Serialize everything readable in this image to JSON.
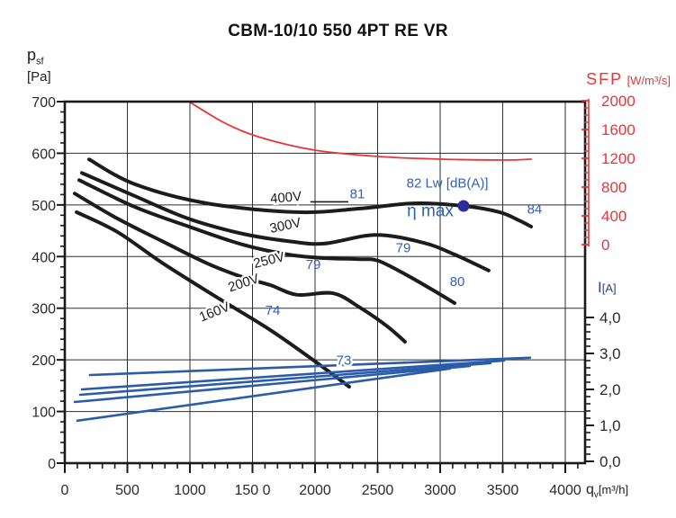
{
  "title": "CBM-10/10 550 4PT RE VR",
  "axes": {
    "pressure": {
      "label": "p",
      "label_sub": "sf",
      "unit": "[Pa]",
      "min": 0,
      "max": 700,
      "major_step": 100,
      "minor_step": 20,
      "tick_labels": [
        "0",
        "100",
        "200",
        "300",
        "400",
        "500",
        "600",
        "700"
      ]
    },
    "flow": {
      "label": "q",
      "label_sub": "v",
      "unit": "[m³/h]",
      "min": 0,
      "max": 4000,
      "major_step": 500,
      "minor_step": 100,
      "tick_labels": [
        "0",
        "500",
        "1000",
        "150 0",
        "2000",
        "2500",
        "3000",
        "3500",
        "4000"
      ]
    },
    "sfp": {
      "label": "SFP",
      "unit": "[W/m³/s]",
      "min": 0,
      "max": 2000,
      "major_step": 400,
      "minor_step": 100,
      "color": "#e8343a",
      "tick_labels": [
        "2000",
        "1600",
        "1200",
        "800",
        "400",
        "0"
      ]
    },
    "current": {
      "label": "I",
      "unit": "[A]",
      "min": 0,
      "max": 4,
      "major_step": 1,
      "minor_step": 0.2,
      "tick_labels": [
        "4,0",
        "3,0",
        "2,0",
        "1,0",
        "0,0"
      ]
    }
  },
  "chart_data": {
    "type": "line",
    "grid": true,
    "colors": {
      "black": "#1c1c1c",
      "blue": "#2a5caa",
      "blue_text": "#2f62b5",
      "red": "#e8343a",
      "dot": "#2d2d9b",
      "grid": "#2e2e2e"
    },
    "series": [
      {
        "name": "400V",
        "axis": "pressure",
        "color": "#1c1c1c",
        "width": 4,
        "smooth": true,
        "points": [
          [
            194,
            588
          ],
          [
            561,
            540
          ],
          [
            1137,
            503
          ],
          [
            1856,
            486
          ],
          [
            2360,
            493
          ],
          [
            2791,
            503
          ],
          [
            3187,
            498
          ],
          [
            3475,
            486
          ],
          [
            3630,
            470
          ],
          [
            3727,
            458
          ]
        ]
      },
      {
        "name": "300V",
        "axis": "pressure",
        "color": "#1c1c1c",
        "width": 4,
        "smooth": true,
        "points": [
          [
            137,
            562
          ],
          [
            561,
            517
          ],
          [
            993,
            473
          ],
          [
            1424,
            444
          ],
          [
            1784,
            430
          ],
          [
            2072,
            425
          ],
          [
            2482,
            442
          ],
          [
            2863,
            427
          ],
          [
            3115,
            404
          ],
          [
            3388,
            373
          ]
        ]
      },
      {
        "name": "250V",
        "axis": "pressure",
        "color": "#1c1c1c",
        "width": 4,
        "smooth": true,
        "points": [
          [
            115,
            548
          ],
          [
            561,
            496
          ],
          [
            993,
            458
          ],
          [
            1424,
            423
          ],
          [
            1784,
            404
          ],
          [
            2072,
            397
          ],
          [
            2360,
            395
          ],
          [
            2503,
            392
          ],
          [
            2719,
            366
          ],
          [
            2935,
            336
          ],
          [
            3115,
            310
          ]
        ]
      },
      {
        "name": "200V",
        "axis": "pressure",
        "color": "#1c1c1c",
        "width": 4,
        "smooth": true,
        "points": [
          [
            79,
            522
          ],
          [
            417,
            474
          ],
          [
            777,
            430
          ],
          [
            1137,
            387
          ],
          [
            1424,
            360
          ],
          [
            1640,
            345
          ],
          [
            1856,
            326
          ],
          [
            2144,
            329
          ],
          [
            2360,
            301
          ],
          [
            2576,
            265
          ],
          [
            2719,
            235
          ]
        ]
      },
      {
        "name": "160V",
        "axis": "pressure",
        "color": "#1c1c1c",
        "width": 4,
        "smooth": true,
        "points": [
          [
            94,
            486
          ],
          [
            417,
            448
          ],
          [
            777,
            388
          ],
          [
            1209,
            322
          ],
          [
            1640,
            258
          ],
          [
            2000,
            197
          ],
          [
            2273,
            148
          ]
        ]
      },
      {
        "name": "SFP",
        "axis": "sfp",
        "color": "#e8343a",
        "width": 1.8,
        "smooth": true,
        "points": [
          [
            993,
            1988
          ],
          [
            1281,
            1688
          ],
          [
            1568,
            1488
          ],
          [
            2000,
            1313
          ],
          [
            2503,
            1225
          ],
          [
            3007,
            1188
          ],
          [
            3511,
            1175
          ],
          [
            3727,
            1188
          ]
        ]
      },
      {
        "name": "I 400V",
        "axis": "current",
        "color": "#2a5caa",
        "width": 2.6,
        "smooth": false,
        "points": [
          [
            201,
            2.4
          ],
          [
            3719,
            2.88
          ]
        ]
      },
      {
        "name": "I 300V",
        "axis": "current",
        "color": "#2a5caa",
        "width": 2.6,
        "smooth": false,
        "points": [
          [
            137,
            2.0
          ],
          [
            3511,
            2.8
          ]
        ]
      },
      {
        "name": "I 250V",
        "axis": "current",
        "color": "#2a5caa",
        "width": 2.6,
        "smooth": false,
        "points": [
          [
            122,
            1.85
          ],
          [
            3403,
            2.73
          ]
        ]
      },
      {
        "name": "I 200V",
        "axis": "current",
        "color": "#2a5caa",
        "width": 2.6,
        "smooth": false,
        "points": [
          [
            79,
            1.65
          ],
          [
            3237,
            2.65
          ]
        ]
      },
      {
        "name": "I 160V",
        "axis": "current",
        "color": "#2a5caa",
        "width": 2.6,
        "smooth": false,
        "points": [
          [
            101,
            1.13
          ],
          [
            3079,
            2.58
          ]
        ]
      }
    ],
    "annotations": [
      {
        "text": "400V",
        "q": 1770,
        "pa": 506,
        "color": "black",
        "rot": -5,
        "size": 15,
        "halo": true
      },
      {
        "text": "300V",
        "q": 1770,
        "pa": 452,
        "color": "black",
        "rot": -12,
        "size": 15,
        "halo": true
      },
      {
        "text": "250V",
        "q": 1640,
        "pa": 385,
        "color": "black",
        "rot": -14,
        "size": 15,
        "halo": true
      },
      {
        "text": "200V",
        "q": 1439,
        "pa": 341,
        "color": "black",
        "rot": -18,
        "size": 15,
        "halo": true
      },
      {
        "text": "160V",
        "q": 1209,
        "pa": 285,
        "color": "black",
        "rot": -22,
        "size": 15,
        "halo": true
      },
      {
        "text": "81",
        "q": 2338,
        "pa": 513,
        "color": "blue",
        "size": 15
      },
      {
        "text": "79",
        "q": 2705,
        "pa": 408,
        "color": "blue",
        "size": 15
      },
      {
        "text": "79",
        "q": 1986,
        "pa": 376,
        "color": "blue",
        "size": 15
      },
      {
        "text": "80",
        "q": 3137,
        "pa": 343,
        "color": "blue",
        "size": 15
      },
      {
        "text": "74",
        "q": 1662,
        "pa": 287,
        "color": "blue",
        "size": 15
      },
      {
        "text": "73",
        "q": 2230,
        "pa": 191,
        "color": "blue",
        "size": 15,
        "halo": true
      },
      {
        "text": "84",
        "q": 3755,
        "pa": 483,
        "color": "blue",
        "size": 15
      },
      {
        "text": "82 Lw [dB(A)]",
        "q": 3058,
        "pa": 534,
        "color": "blue",
        "size": 15
      },
      {
        "text": "η max",
        "q": 2921,
        "pa": 478,
        "color": "blue",
        "size": 19
      }
    ],
    "label_dash": {
      "from": [
        1963,
        506
      ],
      "to": [
        2266,
        506
      ]
    },
    "eta_max_point": {
      "q": 3187,
      "pa": 498,
      "r": 6.5
    }
  }
}
